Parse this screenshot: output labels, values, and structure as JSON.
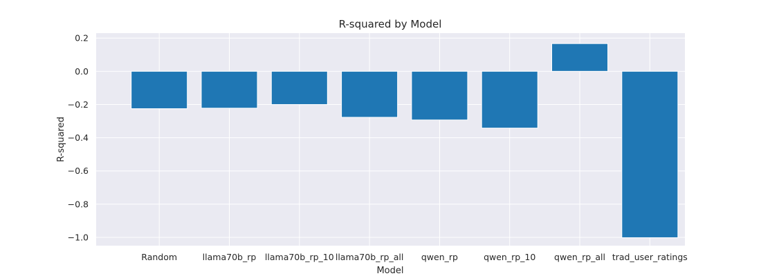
{
  "chart_data": {
    "type": "bar",
    "title": "R-squared by Model",
    "xlabel": "Model",
    "ylabel": "R-squared",
    "categories": [
      "Random",
      "llama70b_rp",
      "llama70b_rp_10",
      "llama70b_rp_all",
      "qwen_rp",
      "qwen_rp_10",
      "qwen_rp_all",
      "trad_user_ratings"
    ],
    "values": [
      -0.225,
      -0.222,
      -0.2,
      -0.277,
      -0.293,
      -0.342,
      0.167,
      -1.002
    ],
    "ylim": [
      -1.05,
      0.23
    ],
    "yticks": [
      0.2,
      0.0,
      -0.2,
      -0.4,
      -0.6,
      -0.8,
      -1.0
    ],
    "ytick_labels": [
      "0.2",
      "0.0",
      "−0.2",
      "−0.4",
      "−0.6",
      "−0.8",
      "−1.0"
    ],
    "grid": true,
    "bar_color": "#1f77b4",
    "background_color": "#eaeaf2"
  }
}
